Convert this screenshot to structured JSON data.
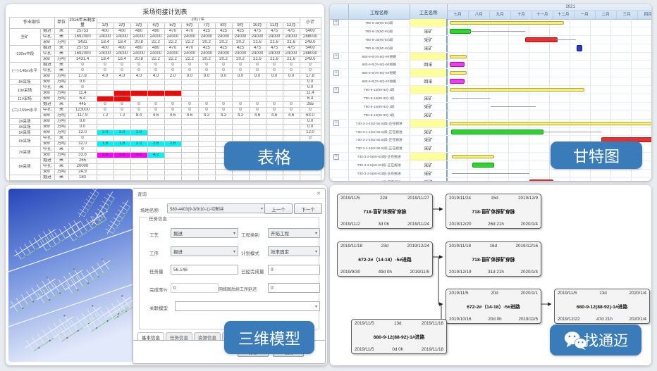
{
  "icons": {
    "chevron_down": "▾",
    "close": "✕",
    "plus": "+"
  },
  "colors": {
    "accent": "#3a7cba",
    "bar_summary": "#f6ef7f",
    "bar_green": "#2ed52e",
    "bar_red": "#e63232",
    "bar_magenta": "#f03cf0",
    "bar_milestone": "#2b3bc0",
    "hl_red": "#fb0605",
    "hl_cyan": "#00f2f2",
    "hl_magenta": "#f705f7"
  },
  "overlays": {
    "table": "表格",
    "gantt": "甘特图",
    "model": "三维模型",
    "wechat_text": "找通迈"
  },
  "plan_table": {
    "title": "采场衔接计划表",
    "header": {
      "area": "作业部位",
      "unit": "单位",
      "remain": "2016年末剩余量",
      "year": "2017年",
      "total": "小计",
      "months": [
        "1月",
        "2月",
        "3月",
        "4月",
        "5月",
        "6月",
        "7月",
        "8月",
        "9月",
        "10月",
        "11月",
        "12月"
      ]
    },
    "rows": [
      {
        "group": "全矿",
        "span": 3,
        "type": "掘进",
        "unit": "米",
        "remain": "25753",
        "m": [
          "400",
          "400",
          "480",
          "480",
          "470",
          "470",
          "425",
          "425",
          "425",
          "475",
          "475",
          "475"
        ],
        "total": "5400"
      },
      {
        "type": "中孔",
        "unit": "米",
        "remain": "1692000",
        "m": [
          "24000",
          "24000",
          "24000",
          "24000",
          "24000",
          "24000",
          "24000",
          "24000",
          "24000",
          "24000",
          "24000",
          "24000"
        ],
        "total": "288000"
      },
      {
        "type": "采矿",
        "unit": "万吨",
        "remain": "1431",
        "m": [
          "18.4",
          "18.4",
          "20.8",
          "22.2",
          "22.2",
          "22.2",
          "20.2",
          "20.2",
          "20.2",
          "21.6",
          "21.6",
          "21.6"
        ],
        "total": "249.0"
      },
      {
        "group": "-230m中段",
        "span": 3,
        "type": "掘进",
        "unit": "米",
        "remain": "25753",
        "m": [
          "400",
          "400",
          "480",
          "480",
          "470",
          "470",
          "425",
          "425",
          "425",
          "475",
          "475",
          "475"
        ],
        "total": "5400"
      },
      {
        "type": "中孔",
        "unit": "米",
        "remain": "1692000",
        "m": [
          "24000",
          "24000",
          "24000",
          "24000",
          "24000",
          "24000",
          "24000",
          "24000",
          "24000",
          "24000",
          "24000",
          "24000"
        ],
        "total": "288000"
      },
      {
        "type": "采矿",
        "unit": "万吨",
        "remain": "1431.4",
        "m": [
          "18.4",
          "18.4",
          "20.8",
          "22.2",
          "22.2",
          "22.2",
          "20.2",
          "20.2",
          "20.2",
          "21.6",
          "21.6",
          "21.6"
        ],
        "total": "249.0"
      },
      {
        "group": "(一)-140m水平",
        "span": 3,
        "type": "掘进",
        "unit": "米",
        "remain": "0",
        "m": [
          "0",
          "0",
          "0",
          "0",
          "0",
          "0",
          "0",
          "0",
          "0",
          "0",
          "0",
          "0"
        ],
        "total": "0"
      },
      {
        "type": "中孔",
        "unit": "米",
        "remain": "0",
        "m": [
          "0",
          "0",
          "0",
          "0",
          "0",
          "0",
          "0",
          "0",
          "0",
          "0",
          "0",
          "0"
        ],
        "total": "0"
      },
      {
        "type": "采矿",
        "unit": "万吨",
        "remain": "17.8",
        "m": [
          "4.0",
          "4.0",
          "4.0",
          "4.0",
          "2.0",
          "0.0",
          "0.0",
          "0.0",
          "0.0",
          "0.0",
          "0.0",
          "0.0"
        ],
        "total": "17.8"
      },
      {
        "group": "8#采场",
        "span": 1,
        "type": "采矿",
        "unit": "万吨",
        "remain": "0.0",
        "m": [],
        "total": "0.0"
      },
      {
        "group": "10#采场",
        "span": 2,
        "type": "中孔",
        "unit": "米",
        "remain": "0",
        "m": [],
        "total": "0.0"
      },
      {
        "type": "采矿",
        "unit": "万吨",
        "remain": "11.4",
        "m": [
          "",
          "2.6",
          "3.0",
          "2.8",
          "3.0"
        ],
        "total": "11.4",
        "hl": {
          "1": "red",
          "2": "red",
          "3": "red",
          "4": "red"
        }
      },
      {
        "group": "11#采场",
        "span": 1,
        "type": "采矿",
        "unit": "万吨",
        "remain": "6.4",
        "m": [
          "4.0",
          "2.4"
        ],
        "total": "6.4",
        "hl": {
          "0": "red",
          "1": "red"
        }
      },
      {
        "group": "(二)-155m水平",
        "span": 3,
        "type": "掘进",
        "unit": "米",
        "remain": "445",
        "m": [
          "0",
          "0",
          "0",
          "0",
          "0",
          "0",
          "0",
          "0",
          "0",
          "0",
          "0",
          "0"
        ],
        "total": "265"
      },
      {
        "type": "中孔",
        "unit": "米",
        "remain": "123000",
        "m": [
          "0",
          "0",
          "0",
          "0",
          "0",
          "0",
          "0",
          "0",
          "0",
          "0",
          "0",
          "0"
        ],
        "total": "0"
      },
      {
        "type": "采矿",
        "unit": "万吨",
        "remain": "117.9",
        "m": [
          "7.2",
          "7.2",
          "8.4",
          "4.6",
          "4.6",
          "4.6",
          "4.2",
          "4.2",
          "4.2",
          "4.6",
          "4.6",
          "4.6"
        ],
        "total": "63.0"
      },
      {
        "group": "2#采场",
        "span": 1,
        "type": "采矿",
        "unit": "万吨",
        "remain": "0.0",
        "m": [],
        "total": "0.0"
      },
      {
        "group": "4#采场",
        "span": 1,
        "type": "采矿",
        "unit": "万吨",
        "remain": "0.0",
        "m": [],
        "total": "0.0"
      },
      {
        "group": "5#采场",
        "span": 1,
        "type": "采矿",
        "unit": "万吨",
        "remain": "12.0",
        "m": [
          "2.0",
          "2.0",
          "2.0"
        ],
        "total": "12.0",
        "hl": {
          "0": "cyan",
          "1": "cyan",
          "2": "cyan"
        }
      },
      {
        "group": "6#采场",
        "span": 2,
        "type": "中孔",
        "unit": "米",
        "remain": "0",
        "m": [],
        "total": "0"
      },
      {
        "type": "采矿",
        "unit": "万吨",
        "remain": "32.0",
        "m": [
          "1.6",
          "1.6",
          "2.2",
          "2.6",
          "2.6"
        ],
        "total": "",
        "hl": {
          "0": "cyan",
          "1": "cyan",
          "2": "cyan",
          "3": "cyan",
          "4": "cyan"
        }
      },
      {
        "group": "7#采场",
        "span": 2,
        "type": "中孔",
        "unit": "米",
        "remain": "0",
        "m": [],
        "total": "0"
      },
      {
        "type": "采矿",
        "unit": "万吨",
        "remain": "33.6",
        "m": [
          "3.6",
          "3.6",
          "4.2",
          "4.2"
        ],
        "total": "",
        "hl": {
          "0": "mag",
          "1": "mag",
          "2": "mag",
          "3": "cyan"
        }
      },
      {
        "group": "8#采场",
        "span": 3,
        "type": "掘进",
        "unit": "米",
        "remain": "265",
        "m": [],
        "total": "0.0"
      },
      {
        "type": "中孔",
        "unit": "米",
        "remain": "20000",
        "m": [],
        "total": "0"
      },
      {
        "type": "采矿",
        "unit": "万吨",
        "remain": "24.9",
        "m": [],
        "total": ""
      },
      {
        "group": "",
        "span": 1,
        "type": "掘进",
        "unit": "米",
        "remain": "180",
        "m": [],
        "total": ""
      }
    ]
  },
  "gantt": {
    "year_label": "2021",
    "name_header": "工程名称",
    "proc_header": "工艺名称",
    "months": [
      "七月",
      "八月",
      "九月",
      "十月",
      "十一月",
      "十二月",
      "一月",
      "二月",
      "三月",
      "四月"
    ],
    "rows": [
      {
        "name": "T90-9-10(90-94)段",
        "proc": "",
        "parent": true,
        "bars": [
          {
            "t": "summary",
            "s": 0.1,
            "e": 5.6
          }
        ]
      },
      {
        "name": "T90-9-10(90-94)段",
        "proc": "采矿",
        "bars": [
          {
            "t": "green",
            "s": 0.1,
            "e": 1.05
          },
          {
            "t": "line",
            "s": 1.05,
            "e": 3.8
          }
        ]
      },
      {
        "name": "T90-9-10(90-94)段",
        "proc": "采矿",
        "bars": [
          {
            "t": "red",
            "s": 3.8,
            "e": 5.3
          },
          {
            "t": "line",
            "s": 5.3,
            "e": 6.25
          }
        ]
      },
      {
        "name": "T90-9-10(90-94)段",
        "proc": "采矿",
        "bars": [
          {
            "t": "milestone",
            "s": 6.3,
            "e": 6.55
          }
        ]
      },
      {
        "name": "880-9-9(76-90)-9#进路",
        "proc": "",
        "parent": true,
        "bars": [
          {
            "t": "summary",
            "s": 0.1,
            "e": 0.85
          }
        ]
      },
      {
        "name": "880-9-9(76-90)-9#进路",
        "proc": "回采",
        "bars": [
          {
            "t": "magenta",
            "s": 0.1,
            "e": 0.75
          }
        ]
      },
      {
        "name": "880-9-9(76-90)-6#进路",
        "proc": "",
        "parent": true,
        "bars": [
          {
            "t": "summary",
            "s": 0.1,
            "e": 0.85
          }
        ]
      },
      {
        "name": "880-9-9(76-90)-6#进路",
        "proc": "回采",
        "bars": [
          {
            "t": "magenta",
            "s": 0.1,
            "e": 0.75
          }
        ]
      },
      {
        "name": "T90-9-12(90-92)-1段",
        "proc": "",
        "parent": true,
        "bars": [
          {
            "t": "summary",
            "s": 0.1,
            "e": 6.6
          }
        ]
      },
      {
        "name": "T90-9-12(90-92)-1段",
        "proc": "采矿",
        "bars": [
          {
            "t": "line",
            "s": 0.2,
            "e": 2.1
          }
        ]
      },
      {
        "name": "T90-9-12(90-92)-1段",
        "proc": "采矿",
        "bars": [
          {
            "t": "line",
            "s": 2.1,
            "e": 4.3
          }
        ]
      },
      {
        "name": "T90-9-12(90-92)-1段",
        "proc": "采矿",
        "bars": []
      },
      {
        "name": "T30-3-1-4(52-56.5)段-正在掘进",
        "proc": "",
        "parent": true,
        "bars": [
          {
            "t": "summary",
            "s": 0.1,
            "e": 10
          }
        ]
      },
      {
        "name": "T30-3-1-4(52-56.5)段-正在掘进",
        "proc": "采矿",
        "bars": [
          {
            "t": "green",
            "s": 0.15,
            "e": 4.6
          },
          {
            "t": "line",
            "s": 4.6,
            "e": 7.5
          }
        ]
      },
      {
        "name": "T30-3-1-4(52-56.5)段-正在掘进",
        "proc": "采矿",
        "bars": [
          {
            "t": "red",
            "s": 7.5,
            "e": 9.95
          }
        ]
      },
      {
        "name": "T30-3-1-4(52-56.5)段-正在掘进",
        "proc": "采矿",
        "bars": []
      },
      {
        "name": "T30-3-2-5(56-63)段-正在掘进",
        "proc": "",
        "parent": true,
        "bars": [
          {
            "t": "summary",
            "s": 0.2,
            "e": 2.2
          }
        ]
      },
      {
        "name": "T30-3-2-5(56-63)段-正在掘进",
        "proc": "采矿",
        "bars": [
          {
            "t": "green",
            "s": 1.2,
            "e": 2.2
          }
        ]
      },
      {
        "name": "T30-3-2-5(56-63)段-正在掘进",
        "proc": "采矿",
        "bars": [
          {
            "t": "line",
            "s": 0.2,
            "e": 4.0
          }
        ]
      },
      {
        "name": "T30-3-2-5(56-63)段-正在掘进",
        "proc": "采矿",
        "bars": [
          {
            "t": "red",
            "s": 4.0,
            "e": 5.1
          }
        ]
      },
      {
        "name": "T30-3-1-4(52-56)段",
        "proc": "",
        "parent": true,
        "bars": [
          {
            "t": "summary",
            "s": 0.1,
            "e": 2.2
          },
          {
            "t": "milestone",
            "s": 8.55,
            "e": 8.8
          }
        ]
      }
    ]
  },
  "viewer_dialog": {
    "title": "查询",
    "site_label": "场地名称",
    "site_value": "580-4403(9-3/9/10-1)-切割井",
    "prev_btn": "上一个",
    "next_btn": "下一个",
    "group_title": "任务信息",
    "fields": {
      "process_label": "工艺",
      "process_value": "掘进",
      "category_label": "工程类别",
      "category_value": "开拓工程",
      "step_label": "工序",
      "step_value": "掘进",
      "mode_label": "计划模式",
      "mode_value": "效率固定",
      "amount_label": "任务量",
      "amount_value": "56.146",
      "done_label": "已经完成量",
      "done_value": "0",
      "rate_label": "完成率%",
      "rate_value": "0",
      "delay_label": "网络图后续工序延迟",
      "delay_value": "0",
      "model_label": "关联模型",
      "model_value": ""
    },
    "tabs": [
      "基本信息",
      "任务信息",
      "资源信息",
      "计划信息"
    ],
    "save_btn": "保存",
    "cancel_btn": "取消"
  },
  "network": {
    "boxes": [
      {
        "es": "2019/11/5",
        "dur": "22d",
        "ef": "2019/11/27",
        "name": "718-盲矿体探矿穿脉",
        "ls": "2019/11/2",
        "slack": "3d 0h",
        "lf": "2019/11/24"
      },
      {
        "es": "2019/11/24",
        "dur": "15d",
        "ef": "2019/12/9",
        "name": "718-盲矿体探矿穿脉",
        "ls": "2019/12/20",
        "slack": "26d 21h",
        "lf": "2020/1/4"
      },
      {
        "es": "2019/11/18",
        "dur": "23d",
        "ef": "2019/12/24",
        "name": "672-2#（14-18）-5#进路",
        "ls": "2019/9/30",
        "slack": "49d 0h",
        "lf": "2019/11/5"
      },
      {
        "es": "2019/11/18",
        "dur": "16d",
        "ef": "2019/12/16",
        "name": "718-盲矿体探矿穿脉",
        "ls": "2019/12/19",
        "slack": "31d 21h",
        "lf": "2020/1/4"
      },
      {
        "es": "2019/11/5",
        "dur": "20d",
        "ef": "2020/1/1",
        "name": "672-2#（14-18）-5#进路",
        "ls": "2019/10/16",
        "slack": "20d 0h",
        "lf": "2019/11/5"
      },
      {
        "es": "2019/11/5",
        "dur": "13d",
        "ef": "2020/1/4",
        "name": "680-9-12(88-92)-1#进路",
        "ls": "2019/12/22",
        "slack": "47d 21h",
        "lf": "2020/1/4"
      },
      {
        "es": "2019/11/5",
        "dur": "13d",
        "ef": "2019/11/18",
        "name": "680-9-12(88-92)-1#进路",
        "ls": "2019/11/5",
        "slack": "0d 0h",
        "lf": "2019/11/18"
      }
    ]
  }
}
